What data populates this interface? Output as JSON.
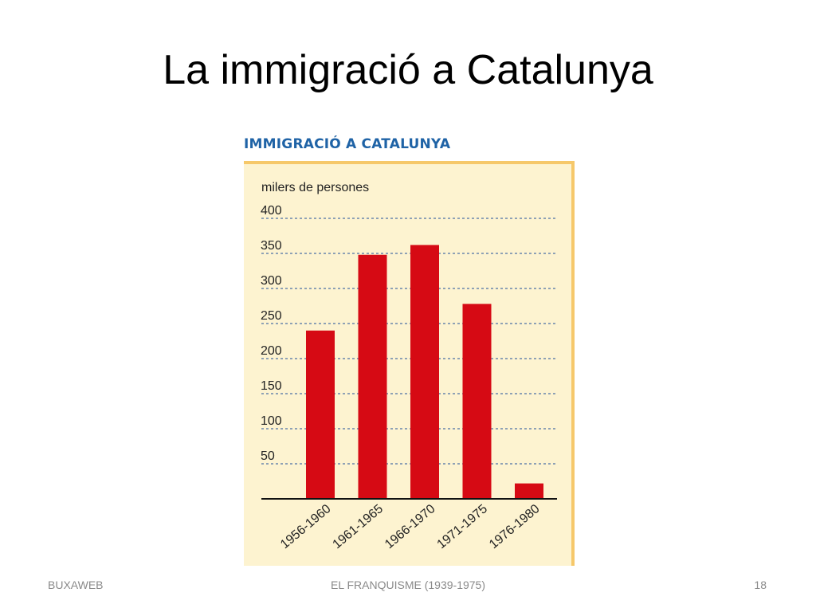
{
  "slide": {
    "title": "La immigració a Catalunya",
    "footer_left": "BUXAWEB",
    "footer_center": "EL FRANQUISME (1939-1975)",
    "footer_right": "18"
  },
  "chart_data": {
    "type": "bar",
    "title": "IMMIGRACIÓ A CATALUNYA",
    "ylabel": "milers de persones",
    "xlabel": "",
    "categories": [
      "1956-1960",
      "1961-1965",
      "1966-1970",
      "1971-1975",
      "1976-1980"
    ],
    "values": [
      240,
      348,
      362,
      278,
      22
    ],
    "ylim": [
      0,
      400
    ],
    "yticks": [
      50,
      100,
      150,
      200,
      250,
      300,
      350,
      400
    ],
    "grid": true,
    "colors": {
      "bar": "#d60a14",
      "panel": "#fdf3d0",
      "panel_border": "#f6c86a",
      "grid": "#1f4f9a",
      "title": "#1f63a6"
    }
  }
}
